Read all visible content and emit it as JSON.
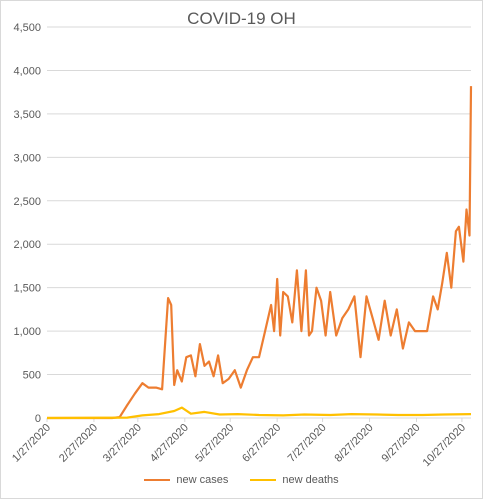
{
  "chart_data": {
    "type": "line",
    "title": "COVID-19 OH",
    "xlabel": "",
    "ylabel": "",
    "ylim": [
      0,
      4500
    ],
    "y_ticks": [
      0,
      500,
      1000,
      1500,
      2000,
      2500,
      3000,
      3500,
      4000,
      4500
    ],
    "y_tick_labels": [
      "0",
      "500",
      "1,000",
      "1,500",
      "2,000",
      "2,500",
      "3,000",
      "3,500",
      "4,000",
      "4,500"
    ],
    "x_tick_labels": [
      "1/27/2020",
      "2/27/2020",
      "3/27/2020",
      "4/27/2020",
      "5/27/2020",
      "6/27/2020",
      "7/27/2020",
      "8/27/2020",
      "9/27/2020",
      "10/27/2020"
    ],
    "grid": "horizontal",
    "legend_position": "bottom",
    "colors": {
      "new_cases": "#ED7D31",
      "new_deaths": "#FFC000",
      "grid": "#d9d9d9",
      "text": "#595959"
    },
    "series": [
      {
        "name": "new cases",
        "x": [
          "2020-01-27",
          "2020-02-27",
          "2020-03-10",
          "2020-03-15",
          "2020-03-20",
          "2020-03-25",
          "2020-03-30",
          "2020-04-03",
          "2020-04-08",
          "2020-04-12",
          "2020-04-16",
          "2020-04-18",
          "2020-04-20",
          "2020-04-22",
          "2020-04-25",
          "2020-04-28",
          "2020-05-01",
          "2020-05-04",
          "2020-05-07",
          "2020-05-10",
          "2020-05-13",
          "2020-05-16",
          "2020-05-19",
          "2020-05-22",
          "2020-05-26",
          "2020-05-30",
          "2020-06-03",
          "2020-06-07",
          "2020-06-11",
          "2020-06-15",
          "2020-06-19",
          "2020-06-23",
          "2020-06-25",
          "2020-06-27",
          "2020-06-29",
          "2020-07-01",
          "2020-07-04",
          "2020-07-07",
          "2020-07-10",
          "2020-07-13",
          "2020-07-16",
          "2020-07-18",
          "2020-07-20",
          "2020-07-23",
          "2020-07-26",
          "2020-07-29",
          "2020-08-01",
          "2020-08-05",
          "2020-08-09",
          "2020-08-13",
          "2020-08-17",
          "2020-08-21",
          "2020-08-25",
          "2020-08-29",
          "2020-09-02",
          "2020-09-06",
          "2020-09-10",
          "2020-09-14",
          "2020-09-18",
          "2020-09-22",
          "2020-09-26",
          "2020-09-30",
          "2020-10-04",
          "2020-10-08",
          "2020-10-11",
          "2020-10-14",
          "2020-10-17",
          "2020-10-20",
          "2020-10-23",
          "2020-10-25",
          "2020-10-28",
          "2020-10-30",
          "2020-11-01",
          "2020-11-02"
        ],
        "values": [
          0,
          0,
          0,
          10,
          150,
          280,
          400,
          350,
          350,
          330,
          1380,
          1300,
          380,
          550,
          420,
          700,
          720,
          480,
          850,
          600,
          650,
          480,
          720,
          400,
          450,
          550,
          350,
          550,
          700,
          700,
          1000,
          1300,
          1000,
          1600,
          950,
          1450,
          1400,
          1100,
          1700,
          1000,
          1700,
          950,
          1000,
          1500,
          1350,
          950,
          1450,
          950,
          1150,
          1250,
          1400,
          700,
          1400,
          1150,
          900,
          1350,
          950,
          1250,
          800,
          1100,
          1000,
          1000,
          1000,
          1400,
          1250,
          1550,
          1900,
          1500,
          2150,
          2200,
          1800,
          2400,
          2100,
          3820
        ]
      },
      {
        "name": "new deaths",
        "x": [
          "2020-01-27",
          "2020-03-20",
          "2020-03-30",
          "2020-04-10",
          "2020-04-20",
          "2020-04-25",
          "2020-05-01",
          "2020-05-10",
          "2020-05-20",
          "2020-06-01",
          "2020-06-15",
          "2020-07-01",
          "2020-07-15",
          "2020-08-01",
          "2020-08-15",
          "2020-09-01",
          "2020-09-15",
          "2020-10-01",
          "2020-10-15",
          "2020-11-02"
        ],
        "values": [
          0,
          5,
          30,
          45,
          80,
          120,
          50,
          70,
          40,
          45,
          35,
          30,
          40,
          35,
          45,
          40,
          35,
          35,
          40,
          45
        ]
      }
    ]
  }
}
